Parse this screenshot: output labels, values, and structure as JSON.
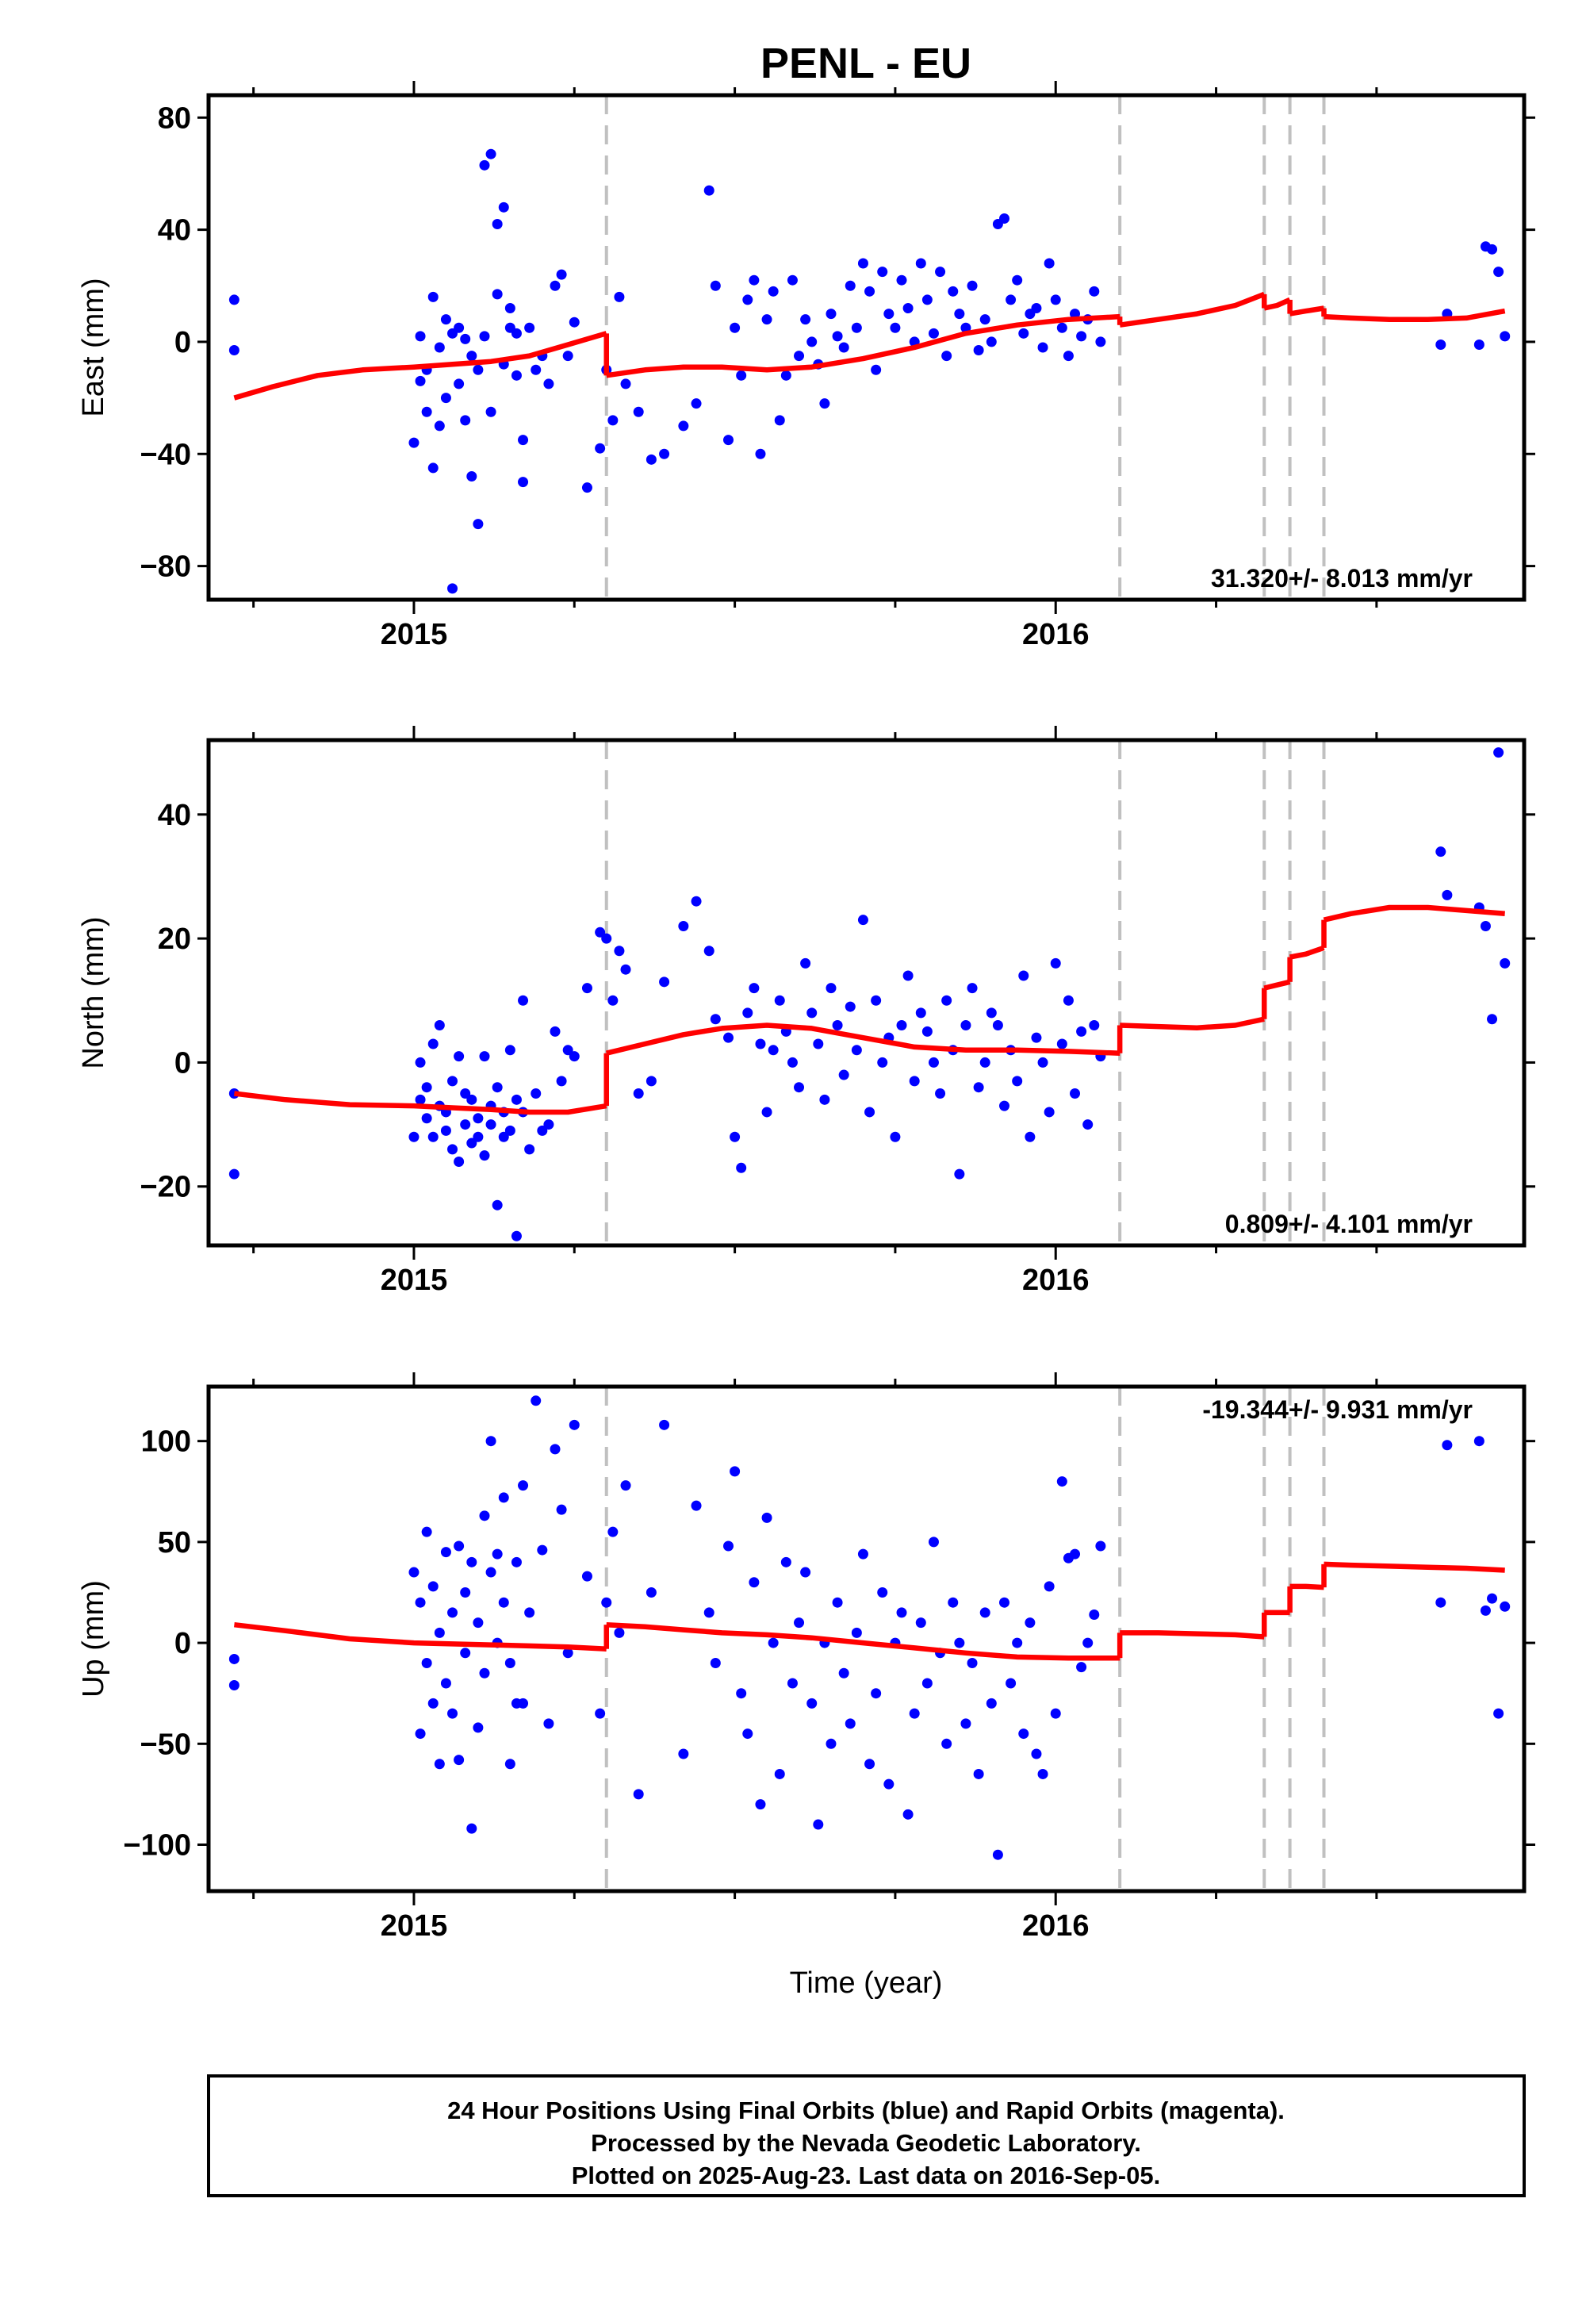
{
  "title": "PENL - EU",
  "xlabel": "Time (year)",
  "footer": {
    "line1": "24 Hour Positions Using Final Orbits (blue) and Rapid Orbits (magenta).",
    "line2": "Processed by the Nevada Geodetic Laboratory.",
    "line3": "Plotted on 2025-Aug-23. Last data on 2016-Sep-05."
  },
  "colors": {
    "data": "#0000ff",
    "model": "#ff0000",
    "offsets": "#c0c0c0",
    "frame": "#000000"
  },
  "chart_data": [
    {
      "type": "scatter",
      "component": "East",
      "ylabel": "East (mm)",
      "xlim": [
        2014.68,
        2016.73
      ],
      "ylim": [
        -92,
        88
      ],
      "yticks": [
        -80,
        -40,
        0,
        40,
        80
      ],
      "ytick_labels": [
        "−80",
        "−40",
        "0",
        "40",
        "80"
      ],
      "xticks": [
        2015,
        2016
      ],
      "rate_label": "31.320+/- 8.013 mm/yr",
      "offsets": [
        2015.3,
        2016.1,
        2016.325,
        2016.365,
        2016.418
      ],
      "x": [
        2014.72,
        2014.72,
        2015.0,
        2015.01,
        2015.01,
        2015.02,
        2015.02,
        2015.03,
        2015.03,
        2015.04,
        2015.04,
        2015.05,
        2015.05,
        2015.06,
        2015.06,
        2015.07,
        2015.07,
        2015.08,
        2015.08,
        2015.09,
        2015.09,
        2015.1,
        2015.1,
        2015.11,
        2015.11,
        2015.12,
        2015.12,
        2015.13,
        2015.13,
        2015.14,
        2015.14,
        2015.15,
        2015.15,
        2015.16,
        2015.16,
        2015.17,
        2015.17,
        2015.18,
        2015.19,
        2015.2,
        2015.21,
        2015.22,
        2015.23,
        2015.24,
        2015.25,
        2015.27,
        2015.29,
        2015.3,
        2015.31,
        2015.32,
        2015.33,
        2015.35,
        2015.37,
        2015.39,
        2015.42,
        2015.44,
        2015.46,
        2015.47,
        2015.49,
        2015.5,
        2015.51,
        2015.52,
        2015.53,
        2015.54,
        2015.55,
        2015.56,
        2015.57,
        2015.58,
        2015.59,
        2015.6,
        2015.61,
        2015.62,
        2015.63,
        2015.64,
        2015.65,
        2015.66,
        2015.67,
        2015.68,
        2015.69,
        2015.7,
        2015.71,
        2015.72,
        2015.73,
        2015.74,
        2015.75,
        2015.76,
        2015.77,
        2015.78,
        2015.79,
        2015.8,
        2015.81,
        2015.82,
        2015.83,
        2015.84,
        2015.85,
        2015.86,
        2015.87,
        2015.88,
        2015.89,
        2015.9,
        2015.91,
        2015.92,
        2015.93,
        2015.94,
        2015.95,
        2015.96,
        2015.97,
        2015.98,
        2015.99,
        2016.0,
        2016.01,
        2016.02,
        2016.03,
        2016.04,
        2016.05,
        2016.06,
        2016.07,
        2016.6,
        2016.61,
        2016.66,
        2016.67,
        2016.68,
        2016.69,
        2016.7
      ],
      "y": [
        15,
        -3,
        -36,
        -14,
        2,
        -25,
        -10,
        16,
        -45,
        -2,
        -30,
        8,
        -20,
        3,
        -88,
        5,
        -15,
        1,
        -28,
        -5,
        -48,
        -65,
        -10,
        63,
        2,
        67,
        -25,
        42,
        17,
        48,
        -8,
        12,
        5,
        3,
        -12,
        -50,
        -35,
        5,
        -10,
        -5,
        -15,
        20,
        24,
        -5,
        7,
        -52,
        -38,
        -10,
        -28,
        16,
        -15,
        -25,
        -42,
        -40,
        -30,
        -22,
        54,
        20,
        -35,
        5,
        -12,
        15,
        22,
        -40,
        8,
        18,
        -28,
        -12,
        22,
        -5,
        8,
        0,
        -8,
        -22,
        10,
        2,
        -2,
        20,
        5,
        28,
        18,
        -10,
        25,
        10,
        5,
        22,
        12,
        0,
        28,
        15,
        3,
        25,
        -5,
        18,
        10,
        5,
        20,
        -3,
        8,
        0,
        42,
        44,
        15,
        22,
        3,
        10,
        12,
        -2,
        28,
        15,
        5,
        -5,
        10,
        2,
        8,
        18,
        0,
        -1,
        10,
        -1,
        34,
        33,
        25,
        2
      ],
      "model_segments": [
        {
          "x": [
            2014.72,
            2014.78,
            2014.85,
            2014.92,
            2015.0,
            2015.06,
            2015.12,
            2015.18,
            2015.24,
            2015.3
          ],
          "y": [
            -20,
            -16,
            -12,
            -10,
            -9,
            -8,
            -7,
            -5,
            -1,
            3
          ]
        },
        {
          "x": [
            2015.3,
            2015.36,
            2015.42,
            2015.48,
            2015.55,
            2015.62,
            2015.7,
            2015.78,
            2015.86,
            2015.94,
            2016.02,
            2016.1
          ],
          "y": [
            -12,
            -10,
            -9,
            -9,
            -10,
            -9,
            -6,
            -2,
            3,
            6,
            8,
            9
          ]
        },
        {
          "x": [
            2016.1,
            2016.16,
            2016.22,
            2016.28,
            2016.325
          ],
          "y": [
            6,
            8,
            10,
            13,
            17
          ]
        },
        {
          "x": [
            2016.325,
            2016.345,
            2016.365
          ],
          "y": [
            12,
            13,
            15
          ]
        },
        {
          "x": [
            2016.365,
            2016.39,
            2016.418
          ],
          "y": [
            10,
            11,
            12
          ]
        },
        {
          "x": [
            2016.418,
            2016.46,
            2016.52,
            2016.58,
            2016.64,
            2016.7
          ],
          "y": [
            9,
            8.5,
            8,
            8,
            8.5,
            11
          ]
        }
      ]
    },
    {
      "type": "scatter",
      "component": "North",
      "ylabel": "North (mm)",
      "xlim": [
        2014.68,
        2016.73
      ],
      "ylim": [
        -29.5,
        52
      ],
      "yticks": [
        -20,
        0,
        20,
        40
      ],
      "ytick_labels": [
        "−20",
        "0",
        "20",
        "40"
      ],
      "xticks": [
        2015,
        2016
      ],
      "rate_label": "0.809+/- 4.101 mm/yr",
      "offsets": [
        2015.3,
        2016.1,
        2016.325,
        2016.365,
        2016.418
      ],
      "x": [
        2014.72,
        2014.72,
        2015.0,
        2015.01,
        2015.01,
        2015.02,
        2015.02,
        2015.03,
        2015.03,
        2015.04,
        2015.04,
        2015.05,
        2015.05,
        2015.06,
        2015.06,
        2015.07,
        2015.07,
        2015.08,
        2015.08,
        2015.09,
        2015.09,
        2015.1,
        2015.1,
        2015.11,
        2015.11,
        2015.12,
        2015.12,
        2015.13,
        2015.13,
        2015.14,
        2015.14,
        2015.15,
        2015.15,
        2015.16,
        2015.16,
        2015.17,
        2015.17,
        2015.18,
        2015.19,
        2015.2,
        2015.21,
        2015.22,
        2015.23,
        2015.24,
        2015.25,
        2015.27,
        2015.29,
        2015.3,
        2015.31,
        2015.32,
        2015.33,
        2015.35,
        2015.37,
        2015.39,
        2015.42,
        2015.44,
        2015.46,
        2015.47,
        2015.49,
        2015.5,
        2015.51,
        2015.52,
        2015.53,
        2015.54,
        2015.55,
        2015.56,
        2015.57,
        2015.58,
        2015.59,
        2015.6,
        2015.61,
        2015.62,
        2015.63,
        2015.64,
        2015.65,
        2015.66,
        2015.67,
        2015.68,
        2015.69,
        2015.7,
        2015.71,
        2015.72,
        2015.73,
        2015.74,
        2015.75,
        2015.76,
        2015.77,
        2015.78,
        2015.79,
        2015.8,
        2015.81,
        2015.82,
        2015.83,
        2015.84,
        2015.85,
        2015.86,
        2015.87,
        2015.88,
        2015.89,
        2015.9,
        2015.91,
        2015.92,
        2015.93,
        2015.94,
        2015.95,
        2015.96,
        2015.97,
        2015.98,
        2015.99,
        2016.0,
        2016.01,
        2016.02,
        2016.03,
        2016.04,
        2016.05,
        2016.06,
        2016.07,
        2016.6,
        2016.61,
        2016.66,
        2016.67,
        2016.68,
        2016.69,
        2016.7
      ],
      "y": [
        -5,
        -18,
        -12,
        -6,
        0,
        -9,
        -4,
        -12,
        3,
        -7,
        6,
        -11,
        -8,
        -14,
        -3,
        -16,
        1,
        -10,
        -5,
        -13,
        -6,
        -9,
        -12,
        1,
        -15,
        -10,
        -7,
        -4,
        -23,
        -8,
        -12,
        2,
        -11,
        -6,
        -28,
        10,
        -8,
        -14,
        -5,
        -11,
        -10,
        5,
        -3,
        2,
        1,
        12,
        21,
        20,
        10,
        18,
        15,
        -5,
        -3,
        13,
        22,
        26,
        18,
        7,
        4,
        -12,
        -17,
        8,
        12,
        3,
        -8,
        2,
        10,
        5,
        0,
        -4,
        16,
        8,
        3,
        -6,
        12,
        6,
        -2,
        9,
        2,
        23,
        -8,
        10,
        0,
        4,
        -12,
        6,
        14,
        -3,
        8,
        5,
        0,
        -5,
        10,
        2,
        -18,
        6,
        12,
        -4,
        0,
        8,
        6,
        -7,
        2,
        -3,
        14,
        -12,
        4,
        0,
        -8,
        16,
        3,
        10,
        -5,
        5,
        -10,
        6,
        1,
        34,
        27,
        25,
        22,
        7,
        50,
        16
      ],
      "model_segments": [
        {
          "x": [
            2014.72,
            2014.8,
            2014.9,
            2015.0,
            2015.06,
            2015.12,
            2015.18,
            2015.24,
            2015.3
          ],
          "y": [
            -5,
            -6,
            -6.8,
            -7,
            -7.3,
            -7.6,
            -8,
            -8,
            -7
          ]
        },
        {
          "x": [
            2015.3,
            2015.36,
            2015.42,
            2015.48,
            2015.55,
            2015.62,
            2015.7,
            2015.78,
            2015.86,
            2015.94,
            2016.02,
            2016.1
          ],
          "y": [
            1.5,
            3,
            4.5,
            5.5,
            6,
            5.5,
            4,
            2.5,
            2,
            2,
            1.8,
            1.5
          ]
        },
        {
          "x": [
            2016.1,
            2016.16,
            2016.22,
            2016.28,
            2016.325
          ],
          "y": [
            6,
            5.8,
            5.6,
            6,
            7
          ]
        },
        {
          "x": [
            2016.325,
            2016.345,
            2016.365
          ],
          "y": [
            12,
            12.5,
            13
          ]
        },
        {
          "x": [
            2016.365,
            2016.39,
            2016.418
          ],
          "y": [
            17,
            17.5,
            18.5
          ]
        },
        {
          "x": [
            2016.418,
            2016.46,
            2016.52,
            2016.58,
            2016.64,
            2016.7
          ],
          "y": [
            23,
            24,
            25,
            25,
            24.5,
            24
          ]
        }
      ]
    },
    {
      "type": "scatter",
      "component": "Up",
      "ylabel": "Up (mm)",
      "xlim": [
        2014.68,
        2016.73
      ],
      "ylim": [
        -123,
        127
      ],
      "yticks": [
        -100,
        -50,
        0,
        50,
        100
      ],
      "ytick_labels": [
        "−100",
        "−50",
        "0",
        "50",
        "100"
      ],
      "xticks": [
        2015,
        2016
      ],
      "rate_label": "-19.344+/- 9.931 mm/yr",
      "offsets": [
        2015.3,
        2016.1,
        2016.325,
        2016.365,
        2016.418
      ],
      "x": [
        2014.72,
        2014.72,
        2015.0,
        2015.01,
        2015.01,
        2015.02,
        2015.02,
        2015.03,
        2015.03,
        2015.04,
        2015.04,
        2015.05,
        2015.05,
        2015.06,
        2015.06,
        2015.07,
        2015.07,
        2015.08,
        2015.08,
        2015.09,
        2015.09,
        2015.1,
        2015.1,
        2015.11,
        2015.11,
        2015.12,
        2015.12,
        2015.13,
        2015.13,
        2015.14,
        2015.14,
        2015.15,
        2015.15,
        2015.16,
        2015.16,
        2015.17,
        2015.17,
        2015.18,
        2015.19,
        2015.2,
        2015.21,
        2015.22,
        2015.23,
        2015.24,
        2015.25,
        2015.27,
        2015.29,
        2015.3,
        2015.31,
        2015.32,
        2015.33,
        2015.35,
        2015.37,
        2015.39,
        2015.42,
        2015.44,
        2015.46,
        2015.47,
        2015.49,
        2015.5,
        2015.51,
        2015.52,
        2015.53,
        2015.54,
        2015.55,
        2015.56,
        2015.57,
        2015.58,
        2015.59,
        2015.6,
        2015.61,
        2015.62,
        2015.63,
        2015.64,
        2015.65,
        2015.66,
        2015.67,
        2015.68,
        2015.69,
        2015.7,
        2015.71,
        2015.72,
        2015.73,
        2015.74,
        2015.75,
        2015.76,
        2015.77,
        2015.78,
        2015.79,
        2015.8,
        2015.81,
        2015.82,
        2015.83,
        2015.84,
        2015.85,
        2015.86,
        2015.87,
        2015.88,
        2015.89,
        2015.9,
        2015.91,
        2015.92,
        2015.93,
        2015.94,
        2015.95,
        2015.96,
        2015.97,
        2015.98,
        2015.99,
        2016.0,
        2016.01,
        2016.02,
        2016.03,
        2016.04,
        2016.05,
        2016.06,
        2016.07,
        2016.6,
        2016.61,
        2016.66,
        2016.67,
        2016.68,
        2016.69,
        2016.7
      ],
      "y": [
        -8,
        -21,
        35,
        -45,
        20,
        -10,
        55,
        -30,
        28,
        -60,
        5,
        -20,
        45,
        -35,
        15,
        48,
        -58,
        25,
        -5,
        40,
        -92,
        10,
        -42,
        63,
        -15,
        35,
        100,
        0,
        44,
        20,
        72,
        -10,
        -60,
        40,
        -30,
        78,
        -30,
        15,
        120,
        46,
        -40,
        96,
        66,
        -5,
        108,
        33,
        -35,
        20,
        55,
        5,
        78,
        -75,
        25,
        108,
        -55,
        68,
        15,
        -10,
        48,
        85,
        -25,
        -45,
        30,
        -80,
        62,
        0,
        -65,
        40,
        -20,
        10,
        35,
        -30,
        -90,
        0,
        -50,
        20,
        -15,
        -40,
        5,
        44,
        -60,
        -25,
        25,
        -70,
        0,
        15,
        -85,
        -35,
        10,
        -20,
        50,
        -5,
        -50,
        20,
        0,
        -40,
        -10,
        -65,
        15,
        -30,
        -105,
        20,
        -20,
        0,
        -45,
        10,
        -55,
        -65,
        28,
        -35,
        80,
        42,
        44,
        -12,
        0,
        14,
        48,
        20,
        98,
        100,
        16,
        22,
        -35,
        18
      ],
      "model_segments": [
        {
          "x": [
            2014.72,
            2014.8,
            2014.9,
            2015.0,
            2015.06,
            2015.12,
            2015.18,
            2015.24,
            2015.3
          ],
          "y": [
            9,
            6,
            2,
            0,
            -0.5,
            -1,
            -1.5,
            -2,
            -3
          ]
        },
        {
          "x": [
            2015.3,
            2015.36,
            2015.42,
            2015.48,
            2015.55,
            2015.62,
            2015.7,
            2015.78,
            2015.86,
            2015.94,
            2016.02,
            2016.1
          ],
          "y": [
            9,
            8,
            6.5,
            5,
            4,
            2.5,
            0,
            -2.5,
            -5,
            -7,
            -7.5,
            -7.5
          ]
        },
        {
          "x": [
            2016.1,
            2016.16,
            2016.22,
            2016.28,
            2016.325
          ],
          "y": [
            5,
            5,
            4.5,
            4,
            3
          ]
        },
        {
          "x": [
            2016.325,
            2016.345,
            2016.365
          ],
          "y": [
            15,
            15,
            15
          ]
        },
        {
          "x": [
            2016.365,
            2016.39,
            2016.418
          ],
          "y": [
            28,
            28,
            27.5
          ]
        },
        {
          "x": [
            2016.418,
            2016.46,
            2016.52,
            2016.58,
            2016.64,
            2016.7
          ],
          "y": [
            39,
            38.5,
            38,
            37.5,
            37,
            36
          ]
        }
      ]
    }
  ]
}
